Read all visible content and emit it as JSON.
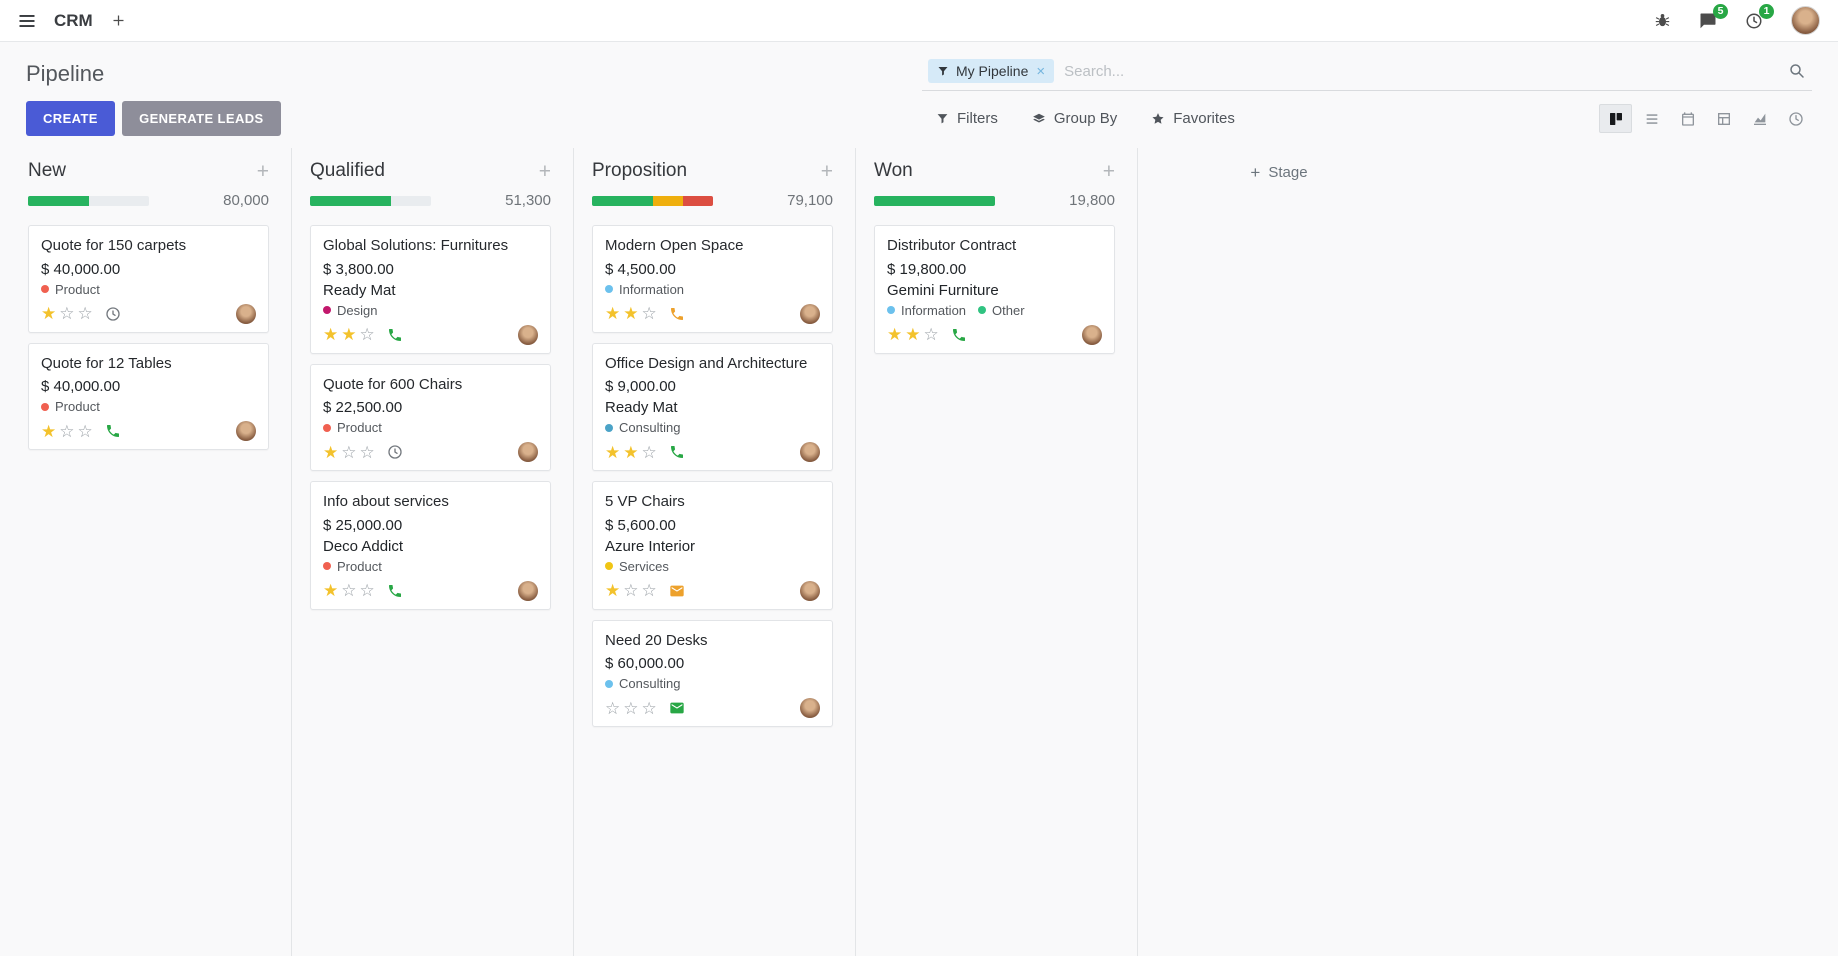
{
  "navbar": {
    "app_name": "CRM",
    "messages_badge": "5",
    "activities_badge": "1"
  },
  "control_panel": {
    "title": "Pipeline",
    "buttons": {
      "create": "CREATE",
      "generate_leads": "GENERATE LEADS"
    },
    "search": {
      "facet_label": "My Pipeline",
      "placeholder": "Search..."
    },
    "filter_menus": {
      "filters": "Filters",
      "group_by": "Group By",
      "favorites": "Favorites"
    }
  },
  "kanban": {
    "add_stage_label": "Stage",
    "columns": [
      {
        "name": "New",
        "total": "80,000",
        "progress": [
          {
            "color": "green",
            "pct": 50
          }
        ],
        "cards": [
          {
            "title": "Quote for 150 carpets",
            "amount": "$ 40,000.00",
            "tags": [
              {
                "label": "Product",
                "color": "red"
              }
            ],
            "stars": 1,
            "activity": {
              "icon": "clock",
              "color": "muted"
            }
          },
          {
            "title": "Quote for 12 Tables",
            "amount": "$ 40,000.00",
            "tags": [
              {
                "label": "Product",
                "color": "red"
              }
            ],
            "stars": 1,
            "activity": {
              "icon": "phone",
              "color": "success"
            }
          }
        ]
      },
      {
        "name": "Qualified",
        "total": "51,300",
        "progress": [
          {
            "color": "green",
            "pct": 66.7
          }
        ],
        "cards": [
          {
            "title": "Global Solutions: Furnitures",
            "amount": "$ 3,800.00",
            "partner": "Ready Mat",
            "tags": [
              {
                "label": "Design",
                "color": "magenta"
              }
            ],
            "stars": 2,
            "activity": {
              "icon": "phone",
              "color": "success"
            }
          },
          {
            "title": "Quote for 600 Chairs",
            "amount": "$ 22,500.00",
            "tags": [
              {
                "label": "Product",
                "color": "red"
              }
            ],
            "stars": 1,
            "activity": {
              "icon": "clock",
              "color": "muted"
            }
          },
          {
            "title": "Info about services",
            "amount": "$ 25,000.00",
            "partner": "Deco Addict",
            "tags": [
              {
                "label": "Product",
                "color": "red"
              }
            ],
            "stars": 1,
            "activity": {
              "icon": "phone",
              "color": "success"
            }
          }
        ]
      },
      {
        "name": "Proposition",
        "total": "79,100",
        "progress": [
          {
            "color": "green",
            "pct": 50
          },
          {
            "color": "yellow",
            "pct": 25
          },
          {
            "color": "red",
            "pct": 25
          }
        ],
        "cards": [
          {
            "title": "Modern Open Space",
            "amount": "$ 4,500.00",
            "tags": [
              {
                "label": "Information",
                "color": "lightblue"
              }
            ],
            "stars": 2,
            "activity": {
              "icon": "phone",
              "color": "warning"
            }
          },
          {
            "title": "Office Design and Architecture",
            "amount": "$ 9,000.00",
            "partner": "Ready Mat",
            "tags": [
              {
                "label": "Consulting",
                "color": "teal"
              }
            ],
            "stars": 2,
            "activity": {
              "icon": "phone",
              "color": "success"
            }
          },
          {
            "title": "5 VP Chairs",
            "amount": "$ 5,600.00",
            "partner": "Azure Interior",
            "tags": [
              {
                "label": "Services",
                "color": "yellow"
              }
            ],
            "stars": 1,
            "activity": {
              "icon": "envelope",
              "color": "orange"
            }
          },
          {
            "title": "Need 20 Desks",
            "amount": "$ 60,000.00",
            "tags": [
              {
                "label": "Consulting",
                "color": "lightblue"
              }
            ],
            "stars": 0,
            "activity": {
              "icon": "envelope",
              "color": "success"
            }
          }
        ]
      },
      {
        "name": "Won",
        "total": "19,800",
        "progress": [
          {
            "color": "green",
            "pct": 100
          }
        ],
        "cards": [
          {
            "title": "Distributor Contract",
            "amount": "$ 19,800.00",
            "partner": "Gemini Furniture",
            "tags": [
              {
                "label": "Information",
                "color": "lightblue"
              },
              {
                "label": "Other",
                "color": "green"
              }
            ],
            "stars": 2,
            "activity": {
              "icon": "phone",
              "color": "success"
            }
          }
        ]
      }
    ]
  },
  "icons": {
    "navbar": [
      "hamburger",
      "plus",
      "bug",
      "chat-bubble",
      "clock",
      "avatar"
    ],
    "search": [
      "funnel",
      "close",
      "magnifier"
    ],
    "filter_row": [
      "funnel",
      "layers",
      "star"
    ],
    "view_switcher": [
      "kanban",
      "list",
      "calendar",
      "pivot",
      "graph",
      "activity-clock"
    ],
    "cards": [
      "star",
      "phone",
      "envelope",
      "clock",
      "avatar"
    ]
  },
  "palette": {
    "primary": "#4a5bd6",
    "secondary": "#8e8e9a",
    "badge_green": "#28a745",
    "star_gold": "#f3c22c",
    "progress_green": "#27b35f",
    "progress_yellow": "#efaf0d",
    "progress_red": "#dc4e41",
    "tag_red": "#f06050",
    "tag_magenta": "#c2186c",
    "tag_lightblue": "#6cc1ed",
    "tag_teal": "#4ba3c7",
    "tag_yellow": "#f0c514",
    "tag_green": "#30c381",
    "activity_success": "#28a745",
    "activity_warning": "#eda12c",
    "activity_orange": "#eda12c",
    "activity_muted": "#73787e"
  }
}
